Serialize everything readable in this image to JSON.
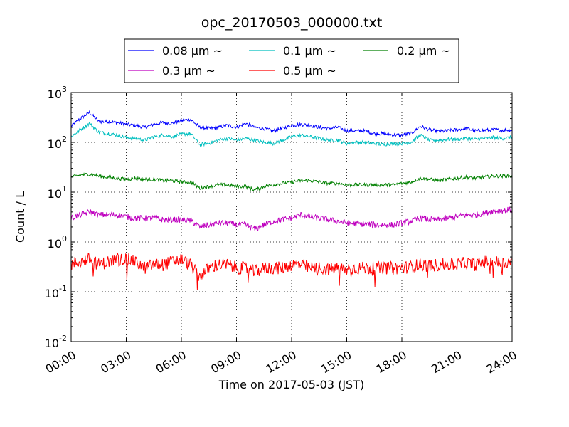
{
  "chart_data": {
    "type": "line",
    "title": "opc_20170503_000000.txt",
    "xlabel": "Time on 2017-05-03 (JST)",
    "ylabel": "Count / L",
    "x_range_hours": [
      0,
      24
    ],
    "y_scale": "log",
    "ylim": [
      0.01,
      1000
    ],
    "grid": true,
    "legend_position": "top-center",
    "x_ticks": [
      "00:00",
      "03:00",
      "06:00",
      "09:00",
      "12:00",
      "15:00",
      "18:00",
      "21:00",
      "24:00"
    ],
    "y_ticks": [
      {
        "base": "10",
        "exp": "-2",
        "value": 0.01
      },
      {
        "base": "10",
        "exp": "-1",
        "value": 0.1
      },
      {
        "base": "10",
        "exp": "0",
        "value": 1
      },
      {
        "base": "10",
        "exp": "1",
        "value": 10
      },
      {
        "base": "10",
        "exp": "2",
        "value": 100
      },
      {
        "base": "10",
        "exp": "3",
        "value": 1000
      }
    ],
    "x": [
      0,
      0.5,
      1,
      1.5,
      2,
      2.5,
      3,
      3.5,
      4,
      4.5,
      5,
      5.5,
      6,
      6.5,
      7,
      7.5,
      8,
      8.5,
      9,
      9.5,
      10,
      10.5,
      11,
      11.5,
      12,
      12.5,
      13,
      13.5,
      14,
      14.5,
      15,
      15.5,
      16,
      16.5,
      17,
      17.5,
      18,
      18.5,
      19,
      19.5,
      20,
      20.5,
      21,
      21.5,
      22,
      22.5,
      23,
      23.5,
      24
    ],
    "series": [
      {
        "name": "0.08 μm ~",
        "color": "#0000ff",
        "values": [
          210,
          300,
          400,
          260,
          260,
          250,
          230,
          220,
          200,
          230,
          250,
          240,
          270,
          290,
          200,
          190,
          200,
          220,
          200,
          240,
          200,
          190,
          170,
          190,
          220,
          230,
          220,
          200,
          190,
          200,
          170,
          170,
          170,
          150,
          150,
          140,
          140,
          150,
          210,
          180,
          165,
          170,
          180,
          190,
          170,
          175,
          180,
          175,
          180
        ]
      },
      {
        "name": "0.1 μm ~",
        "color": "#00bfbf",
        "values": [
          130,
          180,
          240,
          160,
          150,
          140,
          125,
          120,
          110,
          130,
          140,
          130,
          145,
          150,
          90,
          95,
          110,
          120,
          110,
          120,
          110,
          100,
          95,
          110,
          130,
          140,
          130,
          120,
          110,
          110,
          95,
          100,
          100,
          95,
          90,
          95,
          95,
          100,
          140,
          110,
          110,
          115,
          115,
          120,
          115,
          120,
          125,
          120,
          125
        ]
      },
      {
        "name": "0.2 μm ~",
        "color": "#008000",
        "values": [
          20,
          22,
          23,
          21,
          20,
          19,
          18,
          19,
          18,
          18,
          17,
          17,
          16,
          16,
          12,
          13,
          14,
          14,
          13,
          13,
          11,
          13,
          14,
          15,
          16,
          17,
          17,
          16,
          15,
          15,
          14,
          14,
          14,
          14,
          14,
          14,
          15,
          16,
          19,
          18,
          17,
          18,
          19,
          20,
          19,
          20,
          21,
          21,
          21
        ]
      },
      {
        "name": "0.3 μm ~",
        "color": "#bf00bf",
        "values": [
          3.0,
          3.5,
          4.0,
          3.5,
          3.5,
          3.5,
          3.2,
          3.0,
          3.0,
          3.0,
          2.8,
          2.8,
          2.8,
          2.7,
          2.0,
          2.2,
          2.4,
          2.4,
          2.2,
          2.2,
          1.8,
          2.2,
          2.6,
          2.8,
          3.0,
          3.5,
          3.2,
          3.0,
          2.8,
          2.6,
          2.4,
          2.3,
          2.3,
          2.2,
          2.2,
          2.2,
          2.4,
          2.6,
          3.0,
          2.8,
          2.8,
          3.0,
          3.2,
          3.5,
          3.5,
          3.8,
          4.2,
          4.3,
          4.5
        ]
      },
      {
        "name": "0.5 μm ~",
        "color": "#ff0000",
        "values": [
          0.35,
          0.4,
          0.45,
          0.35,
          0.4,
          0.45,
          0.45,
          0.4,
          0.3,
          0.35,
          0.35,
          0.4,
          0.45,
          0.35,
          0.2,
          0.3,
          0.35,
          0.35,
          0.3,
          0.3,
          0.25,
          0.3,
          0.3,
          0.3,
          0.35,
          0.35,
          0.3,
          0.3,
          0.28,
          0.3,
          0.28,
          0.3,
          0.3,
          0.3,
          0.3,
          0.3,
          0.3,
          0.32,
          0.35,
          0.33,
          0.35,
          0.35,
          0.35,
          0.38,
          0.35,
          0.4,
          0.4,
          0.38,
          0.4
        ]
      }
    ]
  }
}
